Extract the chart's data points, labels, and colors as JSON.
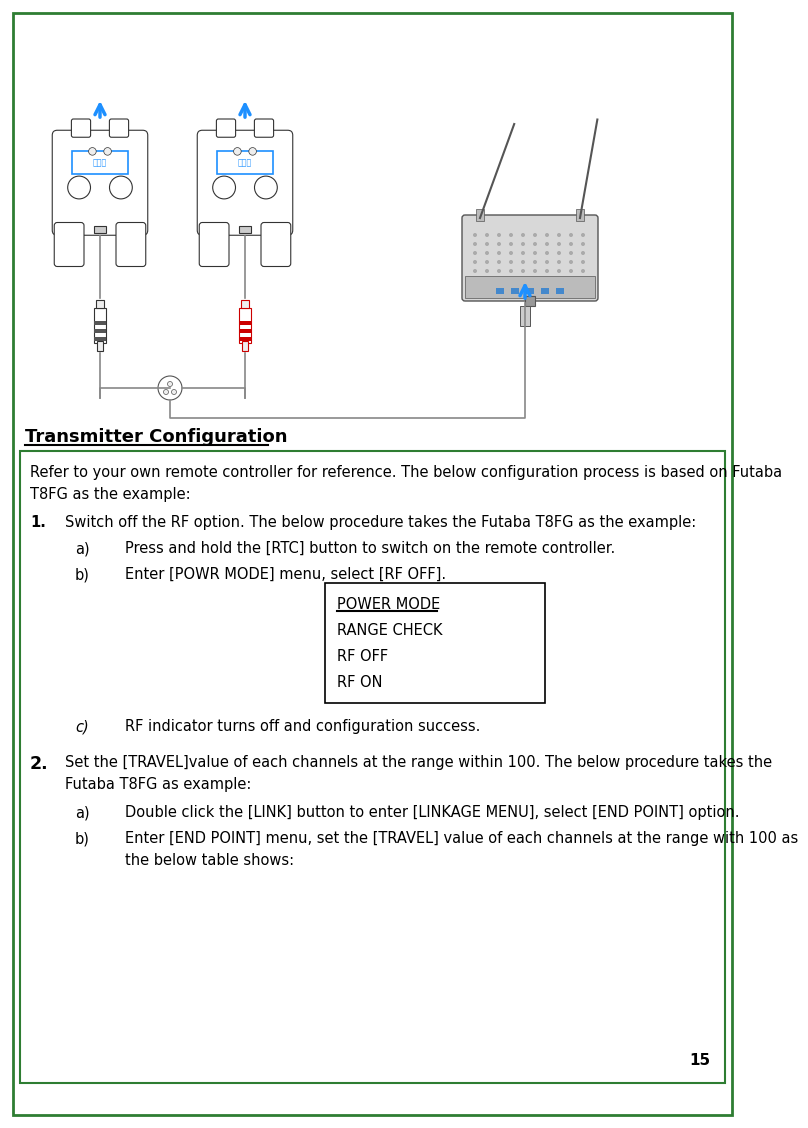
{
  "page_number": "15",
  "title": "Transmitter Configuration",
  "border_color": "#2e7d32",
  "page_bg": "#ffffff",
  "section_box_color": "#2e7d32",
  "font_body": 10.5,
  "font_title": 13,
  "intro_line1": "Refer to your own remote controller for reference. The below configuration process is based on Futaba",
  "intro_line2": "T8FG as the example:",
  "item1_num": "1.",
  "item1_text": "Switch off the RF option. The below procedure takes the Futaba T8FG as the example:",
  "sub_a1": "Press and hold the [RTC] button to switch on the remote controller.",
  "sub_b1": "Enter [POWR MODE] menu, select [RF OFF].",
  "box_lines": [
    "POWER MODE",
    "RANGE CHECK",
    "RF OFF",
    "RF ON"
  ],
  "sub_c1": "RF indicator turns off and configuration success.",
  "item2_num": "2.",
  "item2_line1": "Set the [TRAVEL]value of each channels at the range within 100. The below procedure takes the",
  "item2_line2": "Futaba T8FG as example:",
  "sub_a2": "Double click the [LINK] button to enter [LINKAGE MENU], select [END POINT] option.",
  "sub_b2_line1": "Enter [END POINT] menu, set the [TRAVEL] value of each channels at the range with 100 as",
  "sub_b2_line2": "the below table shows:",
  "blue_color": "#1e90ff",
  "red_color": "#cc0000",
  "gray_color": "#aaaaaa",
  "dark_gray": "#666666",
  "light_gray": "#dddddd",
  "box_label1": "数练口",
  "box_label2": "数练口"
}
